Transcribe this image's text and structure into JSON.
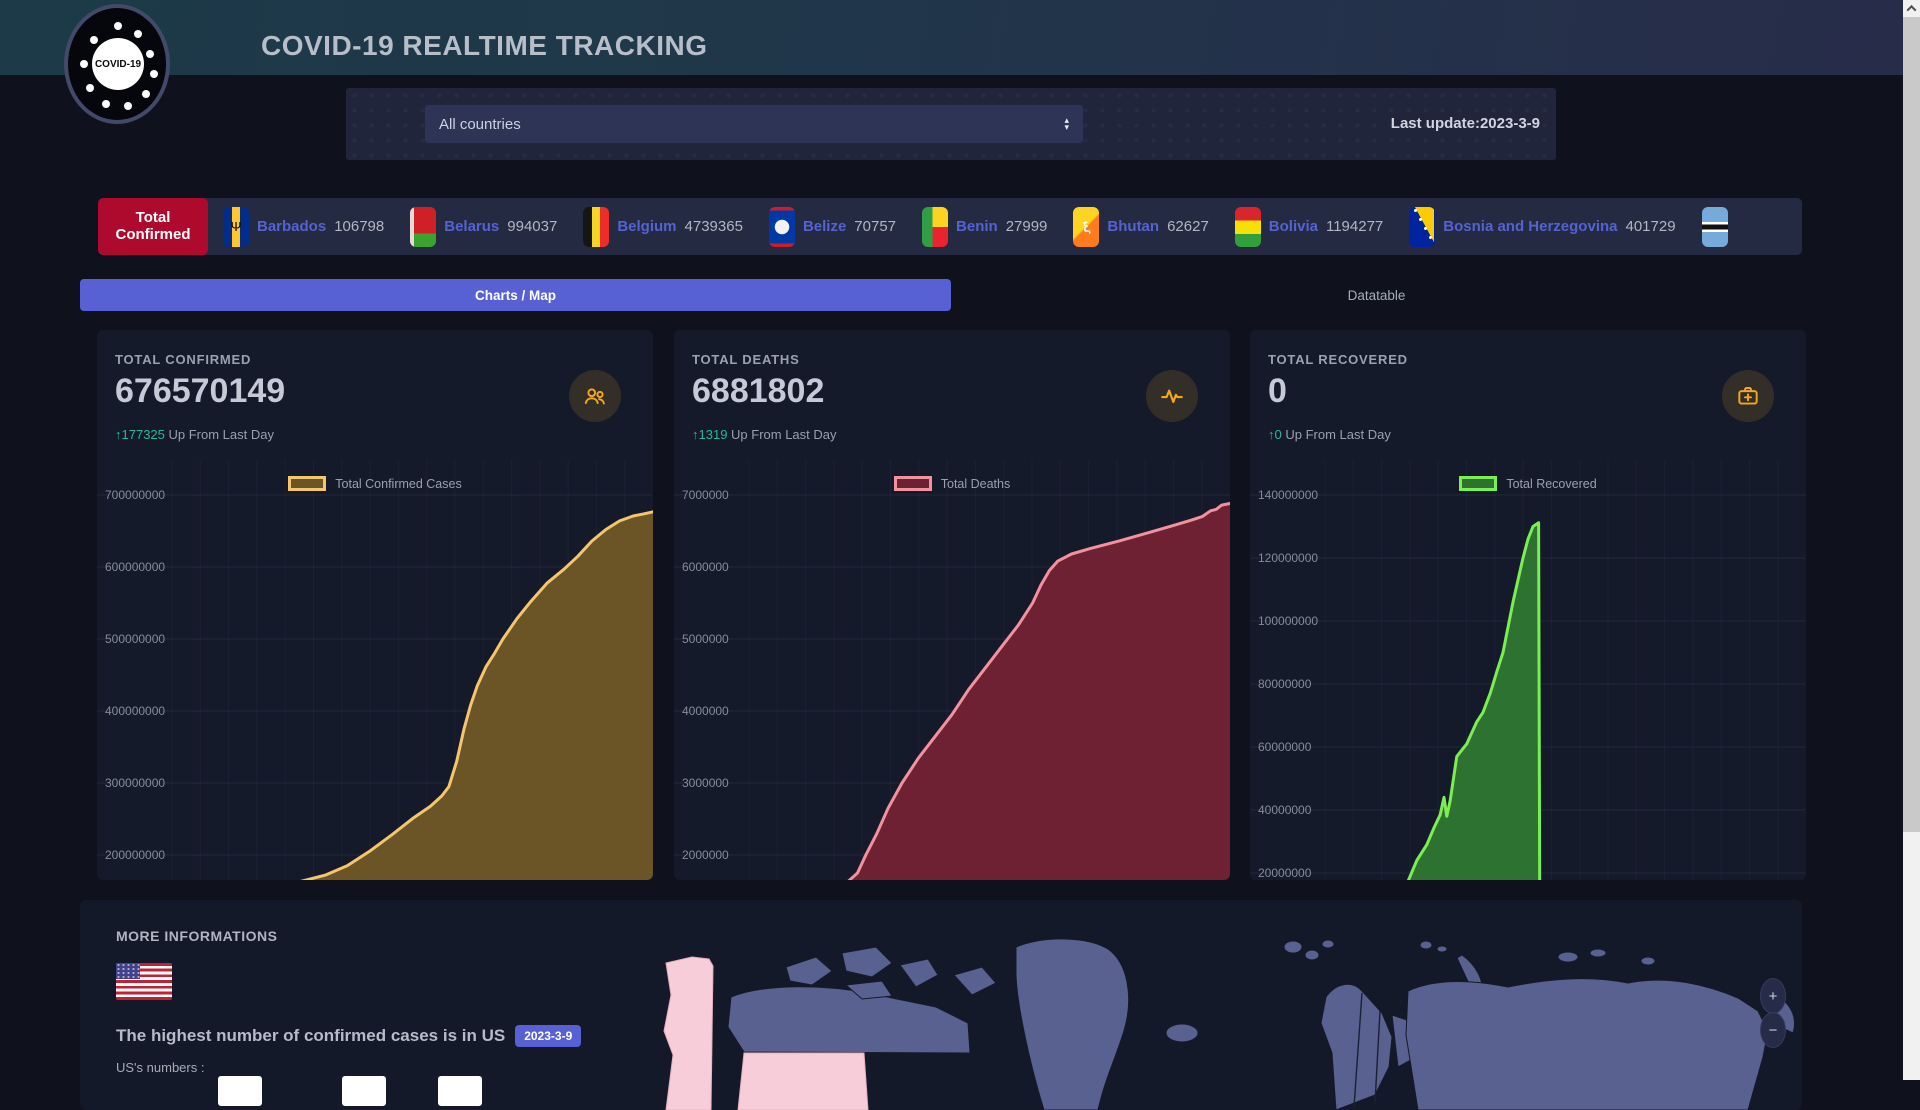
{
  "header": {
    "logo_text": "COVID-19",
    "title": "COVID-19 REALTIME TRACKING"
  },
  "filters": {
    "country_select_value": "All countries",
    "last_update": "Last update:2023-3-9"
  },
  "ticker": {
    "total_confirmed_label": "Total Confirmed",
    "items": [
      {
        "country": "Barbados",
        "value": "106798",
        "flag": "barbados"
      },
      {
        "country": "Belarus",
        "value": "994037",
        "flag": "belarus"
      },
      {
        "country": "Belgium",
        "value": "4739365",
        "flag": "belgium"
      },
      {
        "country": "Belize",
        "value": "70757",
        "flag": "belize"
      },
      {
        "country": "Benin",
        "value": "27999",
        "flag": "benin"
      },
      {
        "country": "Bhutan",
        "value": "62627",
        "flag": "bhutan"
      },
      {
        "country": "Bolivia",
        "value": "1194277",
        "flag": "bolivia"
      },
      {
        "country": "Bosnia and Herzegovina",
        "value": "401729",
        "flag": "bosnia"
      },
      {
        "country": "",
        "value": "",
        "flag": "botswana"
      }
    ]
  },
  "tabs": [
    {
      "label": "Charts / Map",
      "active": true
    },
    {
      "label": "Datatable",
      "active": false
    }
  ],
  "cards": [
    {
      "label": "TOTAL CONFIRMED",
      "value": "676570149",
      "delta_arrow": "↑",
      "delta": "177325",
      "delta_suffix": " Up From Last Day"
    },
    {
      "label": "TOTAL DEATHS",
      "value": "6881802",
      "delta_arrow": "↑",
      "delta": "1319",
      "delta_suffix": " Up From Last Day"
    },
    {
      "label": "TOTAL RECOVERED",
      "value": "0",
      "delta_arrow": "↑",
      "delta": "0",
      "delta_suffix": " Up From Last Day"
    }
  ],
  "chart_data": [
    {
      "type": "area",
      "title": "Total Confirmed Cases",
      "x_axis": "time (date labels cropped out of view)",
      "latest_value": 676570149,
      "line_color": "#f6c66d",
      "fill_color": "#6b5426",
      "grid": true,
      "legend_position": "top-center",
      "value_at_top": 748600000,
      "value_at_bottom": 165300000,
      "y_ticks": [
        {
          "label": "700000000",
          "value": 700000000
        },
        {
          "label": "600000000",
          "value": 600000000
        },
        {
          "label": "500000000",
          "value": 500000000
        },
        {
          "label": "400000000",
          "value": 400000000
        },
        {
          "label": "300000000",
          "value": 300000000
        },
        {
          "label": "200000000",
          "value": 200000000
        }
      ],
      "points": [
        [
          0.355,
          160000000
        ],
        [
          0.38,
          166000000
        ],
        [
          0.41,
          172000000
        ],
        [
          0.45,
          185000000
        ],
        [
          0.49,
          205000000
        ],
        [
          0.53,
          228000000
        ],
        [
          0.57,
          252000000
        ],
        [
          0.6,
          268000000
        ],
        [
          0.62,
          282000000
        ],
        [
          0.633,
          295000000
        ],
        [
          0.647,
          330000000
        ],
        [
          0.66,
          375000000
        ],
        [
          0.672,
          408000000
        ],
        [
          0.684,
          435000000
        ],
        [
          0.7,
          462000000
        ],
        [
          0.715,
          480000000
        ],
        [
          0.73,
          500000000
        ],
        [
          0.755,
          528000000
        ],
        [
          0.78,
          552000000
        ],
        [
          0.81,
          578000000
        ],
        [
          0.84,
          597000000
        ],
        [
          0.865,
          615000000
        ],
        [
          0.89,
          636000000
        ],
        [
          0.915,
          652000000
        ],
        [
          0.94,
          664000000
        ],
        [
          0.965,
          671000000
        ],
        [
          0.985,
          674000000
        ],
        [
          1.0,
          676570149
        ]
      ]
    },
    {
      "type": "area",
      "title": "Total Deaths",
      "x_axis": "time (date labels cropped out of view)",
      "latest_value": 6881802,
      "line_color": "#f2929e",
      "fill_color": "#6e2133",
      "grid": true,
      "legend_position": "top-center",
      "value_at_top": 7486000,
      "value_at_bottom": 1653000,
      "y_ticks": [
        {
          "label": "7000000",
          "value": 7000000
        },
        {
          "label": "6000000",
          "value": 6000000
        },
        {
          "label": "5000000",
          "value": 5000000
        },
        {
          "label": "4000000",
          "value": 4000000
        },
        {
          "label": "3000000",
          "value": 3000000
        },
        {
          "label": "2000000",
          "value": 2000000
        }
      ],
      "points": [
        [
          0.31,
          1550000
        ],
        [
          0.33,
          1750000
        ],
        [
          0.345,
          2000000
        ],
        [
          0.365,
          2300000
        ],
        [
          0.385,
          2650000
        ],
        [
          0.41,
          3000000
        ],
        [
          0.44,
          3350000
        ],
        [
          0.47,
          3650000
        ],
        [
          0.5,
          3950000
        ],
        [
          0.53,
          4300000
        ],
        [
          0.56,
          4600000
        ],
        [
          0.59,
          4900000
        ],
        [
          0.62,
          5200000
        ],
        [
          0.645,
          5500000
        ],
        [
          0.66,
          5750000
        ],
        [
          0.675,
          5950000
        ],
        [
          0.69,
          6080000
        ],
        [
          0.715,
          6180000
        ],
        [
          0.75,
          6260000
        ],
        [
          0.8,
          6360000
        ],
        [
          0.85,
          6470000
        ],
        [
          0.9,
          6580000
        ],
        [
          0.93,
          6650000
        ],
        [
          0.95,
          6700000
        ],
        [
          0.965,
          6780000
        ],
        [
          0.975,
          6800000
        ],
        [
          0.985,
          6860000
        ],
        [
          1.0,
          6881802
        ]
      ]
    },
    {
      "type": "area",
      "title": "Total Recovered",
      "x_axis": "time (date labels cropped out of view); series drops to 0 when reporting stopped",
      "latest_value": 0,
      "peak_value": 131200000,
      "line_color": "#7bef51",
      "fill_color": "#2d7230",
      "grid": true,
      "legend_position": "top-center",
      "value_at_top": 151100000,
      "value_at_bottom": 17780000,
      "y_ticks": [
        {
          "label": "140000000",
          "value": 140000000
        },
        {
          "label": "120000000",
          "value": 120000000
        },
        {
          "label": "100000000",
          "value": 100000000
        },
        {
          "label": "80000000",
          "value": 80000000
        },
        {
          "label": "60000000",
          "value": 60000000
        },
        {
          "label": "40000000",
          "value": 40000000
        },
        {
          "label": "20000000",
          "value": 20000000
        }
      ],
      "points": [
        [
          0.283,
          16000000
        ],
        [
          0.3,
          24000000
        ],
        [
          0.318,
          29000000
        ],
        [
          0.33,
          34000000
        ],
        [
          0.342,
          38500000
        ],
        [
          0.349,
          44000000
        ],
        [
          0.354,
          38000000
        ],
        [
          0.36,
          43000000
        ],
        [
          0.372,
          57000000
        ],
        [
          0.39,
          61000000
        ],
        [
          0.408,
          68000000
        ],
        [
          0.419,
          71000000
        ],
        [
          0.432,
          77000000
        ],
        [
          0.444,
          84000000
        ],
        [
          0.455,
          90000000
        ],
        [
          0.464,
          98000000
        ],
        [
          0.473,
          106000000
        ],
        [
          0.482,
          113000000
        ],
        [
          0.491,
          120000000
        ],
        [
          0.5,
          126000000
        ],
        [
          0.509,
          130000000
        ],
        [
          0.519,
          131200000
        ],
        [
          0.521,
          0
        ]
      ]
    }
  ],
  "more_info": {
    "title": "MORE INFORMATIONS",
    "headline": "The highest number of confirmed cases is in US",
    "badge": "2023-3-9",
    "subtitle": "US's numbers :"
  },
  "map": {
    "zoom_in": "+",
    "zoom_out": "−",
    "highlight_country": "US",
    "land_color": "#58618f",
    "highlight_color": "#f6cdd9"
  },
  "colors": {
    "accent_indigo": "#5761d4",
    "accent_red": "#ad0a2d",
    "accent_teal": "#2bb79a",
    "accent_amber": "#f2a71f"
  }
}
